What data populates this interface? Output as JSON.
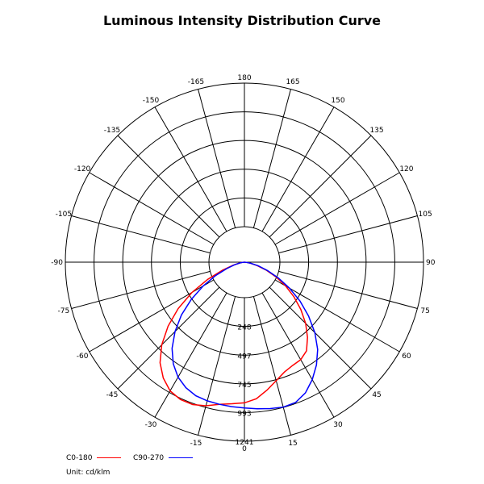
{
  "chart_data": {
    "type": "polar-line",
    "title": "Luminous Intensity Distribution Curve",
    "unit_label": "Unit: cd/klm",
    "radial_max": 1241,
    "ring_labels": [
      "248",
      "497",
      "745",
      "993",
      "1241"
    ],
    "ring_values": [
      248,
      497,
      745,
      993,
      1241
    ],
    "angle_labels": [
      {
        "angle": 0,
        "text": "0"
      },
      {
        "angle": 15,
        "text": "15"
      },
      {
        "angle": 30,
        "text": "30"
      },
      {
        "angle": 45,
        "text": "45"
      },
      {
        "angle": 60,
        "text": "60"
      },
      {
        "angle": 75,
        "text": "75"
      },
      {
        "angle": 90,
        "text": "90"
      },
      {
        "angle": 105,
        "text": "105"
      },
      {
        "angle": 120,
        "text": "120"
      },
      {
        "angle": 135,
        "text": "135"
      },
      {
        "angle": 150,
        "text": "150"
      },
      {
        "angle": 165,
        "text": "165"
      },
      {
        "angle": 180,
        "text": "180"
      },
      {
        "angle": -15,
        "text": "-15"
      },
      {
        "angle": -30,
        "text": "-30"
      },
      {
        "angle": -45,
        "text": "-45"
      },
      {
        "angle": -60,
        "text": "-60"
      },
      {
        "angle": -75,
        "text": "-75"
      },
      {
        "angle": -90,
        "text": "-90"
      },
      {
        "angle": -105,
        "text": "-105"
      },
      {
        "angle": -120,
        "text": "-120"
      },
      {
        "angle": -135,
        "text": "-135"
      },
      {
        "angle": -150,
        "text": "-150"
      },
      {
        "angle": -165,
        "text": "-165"
      }
    ],
    "series": [
      {
        "name": "C0-180",
        "color": "#ff0000",
        "points": [
          [
            -90,
            0
          ],
          [
            -85,
            10
          ],
          [
            -80,
            30
          ],
          [
            -75,
            80
          ],
          [
            -70,
            160
          ],
          [
            -65,
            280
          ],
          [
            -60,
            420
          ],
          [
            -55,
            560
          ],
          [
            -50,
            690
          ],
          [
            -45,
            810
          ],
          [
            -40,
            910
          ],
          [
            -35,
            980
          ],
          [
            -30,
            1030
          ],
          [
            -25,
            1050
          ],
          [
            -20,
            1050
          ],
          [
            -15,
            1030
          ],
          [
            -10,
            1000
          ],
          [
            -5,
            985
          ],
          [
            0,
            975
          ],
          [
            5,
            950
          ],
          [
            10,
            900
          ],
          [
            15,
            850
          ],
          [
            20,
            810
          ],
          [
            25,
            790
          ],
          [
            30,
            780
          ],
          [
            35,
            750
          ],
          [
            40,
            680
          ],
          [
            45,
            600
          ],
          [
            50,
            510
          ],
          [
            55,
            420
          ],
          [
            60,
            330
          ],
          [
            65,
            240
          ],
          [
            70,
            160
          ],
          [
            75,
            90
          ],
          [
            80,
            40
          ],
          [
            85,
            10
          ],
          [
            90,
            0
          ]
        ]
      },
      {
        "name": "C90-270",
        "color": "#0000ff",
        "points": [
          [
            -90,
            0
          ],
          [
            -85,
            10
          ],
          [
            -80,
            30
          ],
          [
            -75,
            70
          ],
          [
            -70,
            130
          ],
          [
            -65,
            220
          ],
          [
            -60,
            330
          ],
          [
            -55,
            450
          ],
          [
            -50,
            570
          ],
          [
            -45,
            680
          ],
          [
            -40,
            780
          ],
          [
            -35,
            860
          ],
          [
            -30,
            920
          ],
          [
            -25,
            960
          ],
          [
            -20,
            985
          ],
          [
            -15,
            995
          ],
          [
            -10,
            1000
          ],
          [
            -5,
            1005
          ],
          [
            0,
            1010
          ],
          [
            5,
            1020
          ],
          [
            10,
            1030
          ],
          [
            15,
            1040
          ],
          [
            20,
            1035
          ],
          [
            25,
            1000
          ],
          [
            30,
            940
          ],
          [
            35,
            870
          ],
          [
            40,
            790
          ],
          [
            45,
            690
          ],
          [
            50,
            580
          ],
          [
            55,
            470
          ],
          [
            60,
            360
          ],
          [
            65,
            260
          ],
          [
            70,
            170
          ],
          [
            75,
            100
          ],
          [
            80,
            45
          ],
          [
            85,
            12
          ],
          [
            90,
            0
          ]
        ]
      }
    ]
  }
}
